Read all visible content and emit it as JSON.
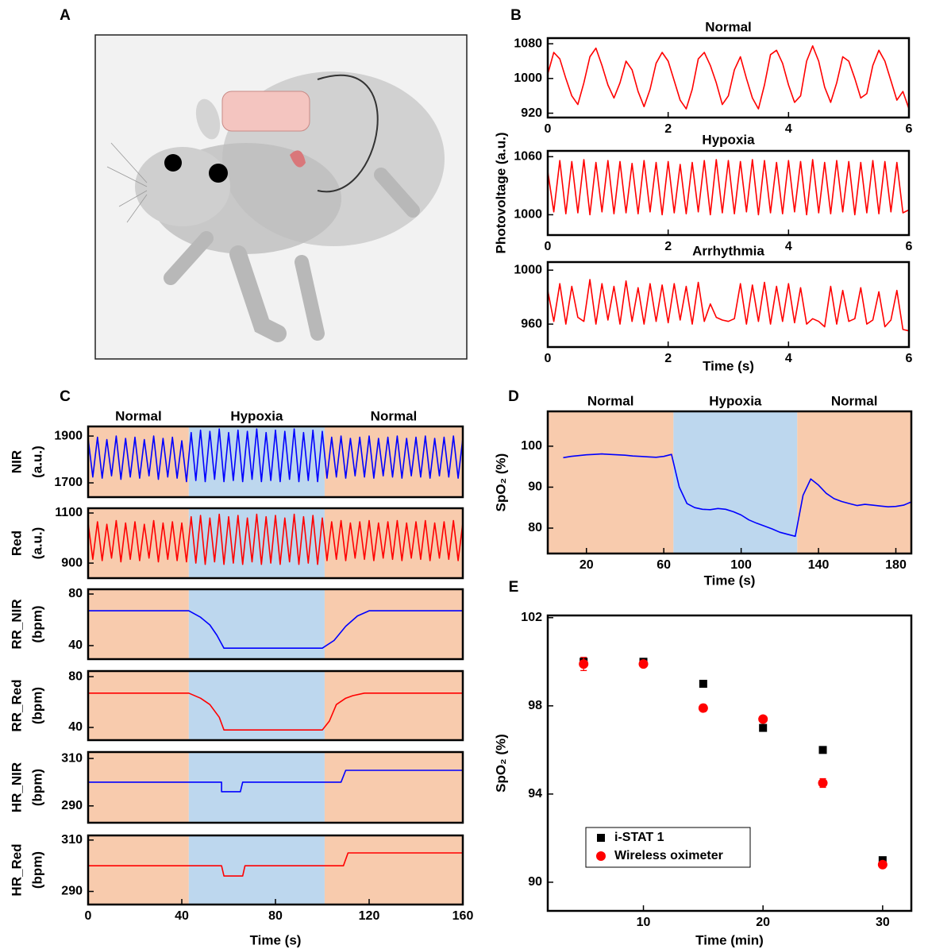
{
  "chart_data": [
    {
      "type": "illustration",
      "panel": "A"
    },
    {
      "type": "line",
      "panel": "B",
      "title": "Normal",
      "x": [
        0,
        0.1,
        0.2,
        0.3,
        0.4,
        0.5,
        0.6,
        0.7,
        0.8,
        0.9,
        1,
        1.1,
        1.2,
        1.3,
        1.4,
        1.5,
        1.6,
        1.7,
        1.8,
        1.9,
        2,
        2.1,
        2.2,
        2.3,
        2.4,
        2.5,
        2.6,
        2.7,
        2.8,
        2.9,
        3,
        3.1,
        3.2,
        3.3,
        3.4,
        3.5,
        3.6,
        3.7,
        3.8,
        3.9,
        4,
        4.1,
        4.2,
        4.3,
        4.4,
        4.5,
        4.6,
        4.7,
        4.8,
        4.9,
        5,
        5.1,
        5.2,
        5.3,
        5.4,
        5.5,
        5.6,
        5.7,
        5.8,
        5.9,
        6
      ],
      "series": [
        {
          "color": "#ff0000",
          "values": [
            1010,
            1060,
            1045,
            1000,
            960,
            940,
            990,
            1050,
            1070,
            1030,
            985,
            955,
            990,
            1040,
            1020,
            970,
            935,
            975,
            1035,
            1060,
            1040,
            995,
            950,
            930,
            975,
            1045,
            1060,
            1030,
            990,
            940,
            960,
            1020,
            1050,
            1000,
            955,
            930,
            985,
            1055,
            1065,
            1035,
            985,
            945,
            960,
            1040,
            1075,
            1040,
            980,
            945,
            990,
            1050,
            1040,
            1000,
            955,
            965,
            1030,
            1065,
            1040,
            995,
            950,
            970,
            930
          ]
        }
      ],
      "xlim": [
        0,
        6
      ],
      "ylim": [
        910,
        1093
      ],
      "xticks": [
        0,
        2,
        4,
        6
      ],
      "yticks": [
        920,
        1000,
        1080
      ]
    },
    {
      "type": "line",
      "title": "Hypoxia",
      "ylabel": "Photovoltage (a.u.)",
      "x": [
        0,
        0.1,
        0.2,
        0.3,
        0.4,
        0.5,
        0.6,
        0.7,
        0.8,
        0.9,
        1,
        1.1,
        1.2,
        1.3,
        1.4,
        1.5,
        1.6,
        1.7,
        1.8,
        1.9,
        2,
        2.1,
        2.2,
        2.3,
        2.4,
        2.5,
        2.6,
        2.7,
        2.8,
        2.9,
        3,
        3.1,
        3.2,
        3.3,
        3.4,
        3.5,
        3.6,
        3.7,
        3.8,
        3.9,
        4,
        4.1,
        4.2,
        4.3,
        4.4,
        4.5,
        4.6,
        4.7,
        4.8,
        4.9,
        5,
        5.1,
        5.2,
        5.3,
        5.4,
        5.5,
        5.6,
        5.7,
        5.8,
        5.9,
        6
      ],
      "series": [
        {
          "color": "#ff0000",
          "values": [
            1045,
            1003,
            1056,
            1001,
            1055,
            1002,
            1057,
            1000,
            1054,
            1003,
            1056,
            1001,
            1055,
            1002,
            1053,
            1001,
            1056,
            1003,
            1054,
            1000,
            1055,
            1002,
            1052,
            1001,
            1054,
            1003,
            1056,
            1000,
            1057,
            1002,
            1056,
            1001,
            1055,
            1003,
            1057,
            1000,
            1056,
            1002,
            1054,
            1001,
            1056,
            1003,
            1055,
            1000,
            1057,
            1002,
            1054,
            1001,
            1056,
            1003,
            1055,
            1000,
            1054,
            1002,
            1056,
            1001,
            1055,
            1003,
            1054,
            1002,
            1005
          ]
        }
      ],
      "xlim": [
        0,
        6
      ],
      "ylim": [
        979,
        1066
      ],
      "xticks": [
        0,
        2,
        4,
        6
      ],
      "yticks": [
        1000,
        1060
      ]
    },
    {
      "type": "line",
      "title": "Arrhythmia",
      "xlabel": "Time (s)",
      "x": [
        0,
        0.1,
        0.2,
        0.3,
        0.4,
        0.5,
        0.6,
        0.7,
        0.8,
        0.9,
        1,
        1.1,
        1.2,
        1.3,
        1.4,
        1.5,
        1.6,
        1.7,
        1.8,
        1.9,
        2,
        2.1,
        2.2,
        2.3,
        2.4,
        2.5,
        2.6,
        2.7,
        2.8,
        2.9,
        3,
        3.1,
        3.2,
        3.3,
        3.4,
        3.5,
        3.6,
        3.7,
        3.8,
        3.9,
        4,
        4.1,
        4.2,
        4.3,
        4.4,
        4.5,
        4.6,
        4.7,
        4.8,
        4.9,
        5,
        5.1,
        5.2,
        5.3,
        5.4,
        5.5,
        5.6,
        5.7,
        5.8,
        5.9,
        6
      ],
      "series": [
        {
          "color": "#ff0000",
          "values": [
            985,
            962,
            990,
            960,
            988,
            965,
            962,
            993,
            960,
            990,
            963,
            988,
            960,
            992,
            962,
            987,
            960,
            990,
            962,
            989,
            961,
            990,
            963,
            988,
            960,
            991,
            962,
            975,
            965,
            963,
            962,
            964,
            990,
            960,
            989,
            962,
            991,
            960,
            988,
            962,
            990,
            961,
            987,
            960,
            964,
            962,
            958,
            988,
            960,
            985,
            962,
            964,
            987,
            960,
            963,
            984,
            958,
            963,
            985,
            956,
            955
          ]
        }
      ],
      "xlim": [
        0,
        6
      ],
      "ylim": [
        943,
        1006
      ],
      "xticks": [
        0,
        2,
        4,
        6
      ],
      "yticks": [
        960,
        1000
      ]
    },
    {
      "type": "line",
      "panel": "C",
      "ylabel": [
        "NIR",
        "(a.u.)"
      ],
      "regions": [
        {
          "label": "Normal",
          "start": 0,
          "end": 43,
          "color": "#f8cbad",
          "text_color": "#c55a11"
        },
        {
          "label": "Hypoxia",
          "start": 43,
          "end": 101,
          "color": "#bdd7ee",
          "text_color": "#2e75b6"
        },
        {
          "label": "Normal",
          "start": 101,
          "end": 160,
          "color": "#f8cbad",
          "text_color": "#c55a11"
        }
      ],
      "x": [
        0,
        2,
        4,
        6,
        8,
        10,
        12,
        14,
        16,
        18,
        20,
        22,
        24,
        26,
        28,
        30,
        32,
        34,
        36,
        38,
        40,
        42,
        44,
        46,
        48,
        50,
        52,
        54,
        56,
        58,
        60,
        62,
        64,
        66,
        68,
        70,
        72,
        74,
        76,
        78,
        80,
        82,
        84,
        86,
        88,
        90,
        92,
        94,
        96,
        98,
        100,
        102,
        104,
        106,
        108,
        110,
        112,
        114,
        116,
        118,
        120,
        122,
        124,
        126,
        128,
        130,
        132,
        134,
        136,
        138,
        140,
        142,
        144,
        146,
        148,
        150,
        152,
        154,
        156,
        158,
        160
      ],
      "series": [
        {
          "color": "#0000ff",
          "values": [
            1890,
            1725,
            1895,
            1720,
            1885,
            1730,
            1900,
            1715,
            1890,
            1725,
            1895,
            1720,
            1885,
            1730,
            1900,
            1715,
            1890,
            1725,
            1895,
            1720,
            1880,
            1705,
            1915,
            1710,
            1925,
            1705,
            1920,
            1715,
            1930,
            1705,
            1915,
            1710,
            1925,
            1705,
            1920,
            1715,
            1930,
            1705,
            1915,
            1710,
            1925,
            1705,
            1920,
            1715,
            1930,
            1705,
            1915,
            1710,
            1925,
            1705,
            1920,
            1720,
            1895,
            1725,
            1900,
            1720,
            1890,
            1730,
            1895,
            1725,
            1900,
            1720,
            1890,
            1730,
            1895,
            1725,
            1900,
            1720,
            1890,
            1730,
            1895,
            1725,
            1900,
            1720,
            1890,
            1730,
            1895,
            1725,
            1900,
            1720,
            1890
          ]
        }
      ],
      "xlim": [
        0,
        160
      ],
      "ylim": [
        1639,
        1941
      ],
      "yticks": [
        1700,
        1900
      ]
    },
    {
      "type": "line",
      "ylabel": [
        "Red",
        "(a.u.)"
      ],
      "x": [
        0,
        2,
        4,
        6,
        8,
        10,
        12,
        14,
        16,
        18,
        20,
        22,
        24,
        26,
        28,
        30,
        32,
        34,
        36,
        38,
        40,
        42,
        44,
        46,
        48,
        50,
        52,
        54,
        56,
        58,
        60,
        62,
        64,
        66,
        68,
        70,
        72,
        74,
        76,
        78,
        80,
        82,
        84,
        86,
        88,
        90,
        92,
        94,
        96,
        98,
        100,
        102,
        104,
        106,
        108,
        110,
        112,
        114,
        116,
        118,
        120,
        122,
        124,
        126,
        128,
        130,
        132,
        134,
        136,
        138,
        140,
        142,
        144,
        146,
        148,
        150,
        152,
        154,
        156,
        158,
        160
      ],
      "series": [
        {
          "color": "#ff0000",
          "values": [
            1060,
            915,
            1065,
            910,
            1055,
            920,
            1070,
            905,
            1060,
            915,
            1065,
            910,
            1055,
            920,
            1070,
            905,
            1060,
            915,
            1065,
            910,
            1060,
            905,
            1085,
            900,
            1090,
            895,
            1080,
            905,
            1095,
            895,
            1085,
            900,
            1090,
            895,
            1080,
            905,
            1095,
            895,
            1085,
            900,
            1090,
            895,
            1080,
            905,
            1095,
            895,
            1085,
            900,
            1090,
            895,
            1080,
            910,
            1065,
            915,
            1070,
            910,
            1060,
            920,
            1065,
            915,
            1070,
            910,
            1060,
            920,
            1065,
            915,
            1070,
            910,
            1060,
            920,
            1065,
            915,
            1070,
            910,
            1060,
            920,
            1065,
            915,
            1070,
            910,
            1060
          ]
        }
      ],
      "xlim": [
        0,
        160
      ],
      "ylim": [
        840,
        1119
      ],
      "yticks": [
        900,
        1100
      ]
    },
    {
      "type": "line",
      "ylabel": [
        "RR_NIR",
        "(bpm)"
      ],
      "x": [
        0,
        43,
        48,
        52,
        55,
        58,
        100,
        105,
        110,
        115,
        120,
        160
      ],
      "series": [
        {
          "color": "#0000ff",
          "values": [
            67,
            67,
            62,
            56,
            48,
            38,
            38,
            44,
            55,
            63,
            67,
            67
          ]
        }
      ],
      "xlim": [
        0,
        160
      ],
      "ylim": [
        29.5,
        83.7
      ],
      "yticks": [
        40,
        80
      ]
    },
    {
      "type": "line",
      "ylabel": [
        "RR_Red",
        "(bpm)"
      ],
      "x": [
        0,
        43,
        48,
        52,
        56,
        58,
        100,
        103,
        106,
        110,
        113,
        118,
        160
      ],
      "series": [
        {
          "color": "#ff0000",
          "values": [
            67,
            67,
            63,
            58,
            48,
            38,
            38,
            45,
            58,
            63,
            65,
            67,
            67
          ]
        }
      ],
      "xlim": [
        0,
        160
      ],
      "ylim": [
        30,
        84.4
      ],
      "yticks": [
        40,
        80
      ]
    },
    {
      "type": "line",
      "ylabel": [
        "HR_NIR",
        "(bpm)"
      ],
      "x": [
        0,
        57,
        57,
        65,
        66,
        108,
        110,
        160
      ],
      "series": [
        {
          "color": "#0000ff",
          "values": [
            300,
            300,
            296,
            296,
            300,
            300,
            305,
            305
          ]
        }
      ],
      "xlim": [
        0,
        160
      ],
      "ylim": [
        282.9,
        312.7
      ],
      "yticks": [
        290,
        310
      ]
    },
    {
      "type": "line",
      "ylabel": [
        "HR_Red",
        "(bpm)"
      ],
      "xlabel": "Time (s)",
      "x": [
        0,
        57,
        58,
        66,
        67,
        109,
        111,
        160
      ],
      "series": [
        {
          "color": "#ff0000",
          "values": [
            300,
            300,
            296,
            296,
            300,
            300,
            305,
            305
          ]
        }
      ],
      "xlim": [
        0,
        160
      ],
      "ylim": [
        284.9,
        311.8
      ],
      "xticks": [
        0,
        40,
        80,
        120,
        160
      ],
      "yticks": [
        290,
        310
      ]
    },
    {
      "type": "line",
      "panel": "D",
      "ylabel": "SpO₂ (%)",
      "xlabel": "Time (s)",
      "regions": [
        {
          "label": "Normal",
          "start": 0,
          "end": 65,
          "color": "#f8cbad",
          "text_color": "#c55a11"
        },
        {
          "label": "Hypoxia",
          "start": 65,
          "end": 129,
          "color": "#bdd7ee",
          "text_color": "#2e75b6"
        },
        {
          "label": "Normal",
          "start": 129,
          "end": 188,
          "color": "#f8cbad",
          "text_color": "#c55a11"
        }
      ],
      "x": [
        8,
        12,
        16,
        20,
        24,
        28,
        32,
        36,
        40,
        44,
        48,
        52,
        56,
        60,
        64,
        68,
        72,
        76,
        80,
        84,
        88,
        92,
        96,
        100,
        104,
        108,
        112,
        116,
        120,
        124,
        128,
        132,
        136,
        140,
        144,
        148,
        152,
        156,
        160,
        164,
        168,
        172,
        176,
        180,
        184,
        188
      ],
      "series": [
        {
          "color": "#0000ff",
          "values": [
            97.2,
            97.5,
            97.7,
            97.9,
            98.0,
            98.1,
            98.0,
            97.9,
            97.8,
            97.6,
            97.5,
            97.4,
            97.3,
            97.5,
            98.0,
            90,
            86,
            85,
            84.6,
            84.5,
            84.8,
            84.6,
            84,
            83.2,
            82,
            81.2,
            80.5,
            79.8,
            79,
            78.5,
            78,
            88,
            92,
            90.5,
            88.5,
            87.2,
            86.5,
            86,
            85.5,
            85.8,
            85.6,
            85.4,
            85.2,
            85.3,
            85.6,
            86.4
          ]
        }
      ],
      "xlim": [
        0,
        188
      ],
      "ylim": [
        73.8,
        108.5
      ],
      "xticks": [
        20,
        60,
        100,
        140,
        180
      ],
      "yticks": [
        80,
        90,
        100
      ]
    },
    {
      "type": "scatter",
      "panel": "E",
      "ylabel": "SpO₂ (%)",
      "xlabel": "Time (min)",
      "legend": "lower left",
      "x": [
        5,
        10,
        15,
        20,
        25,
        30
      ],
      "series": [
        {
          "name": "i-STAT 1",
          "color": "#000000",
          "marker": "square",
          "values": [
            100,
            100,
            99,
            97,
            96,
            91
          ]
        },
        {
          "name": "Wireless oximeter",
          "color": "#ff0000",
          "marker": "circle",
          "values": [
            99.9,
            99.9,
            97.9,
            97.4,
            94.5,
            90.8
          ],
          "errors": [
            0.3,
            0.1,
            0.15,
            0.05,
            0.2,
            0.15
          ]
        }
      ],
      "xlim": [
        2,
        32.4
      ],
      "ylim": [
        88.7,
        102.1
      ],
      "xticks": [
        10,
        20,
        30
      ],
      "yticks": [
        90,
        94,
        98,
        102
      ]
    }
  ]
}
